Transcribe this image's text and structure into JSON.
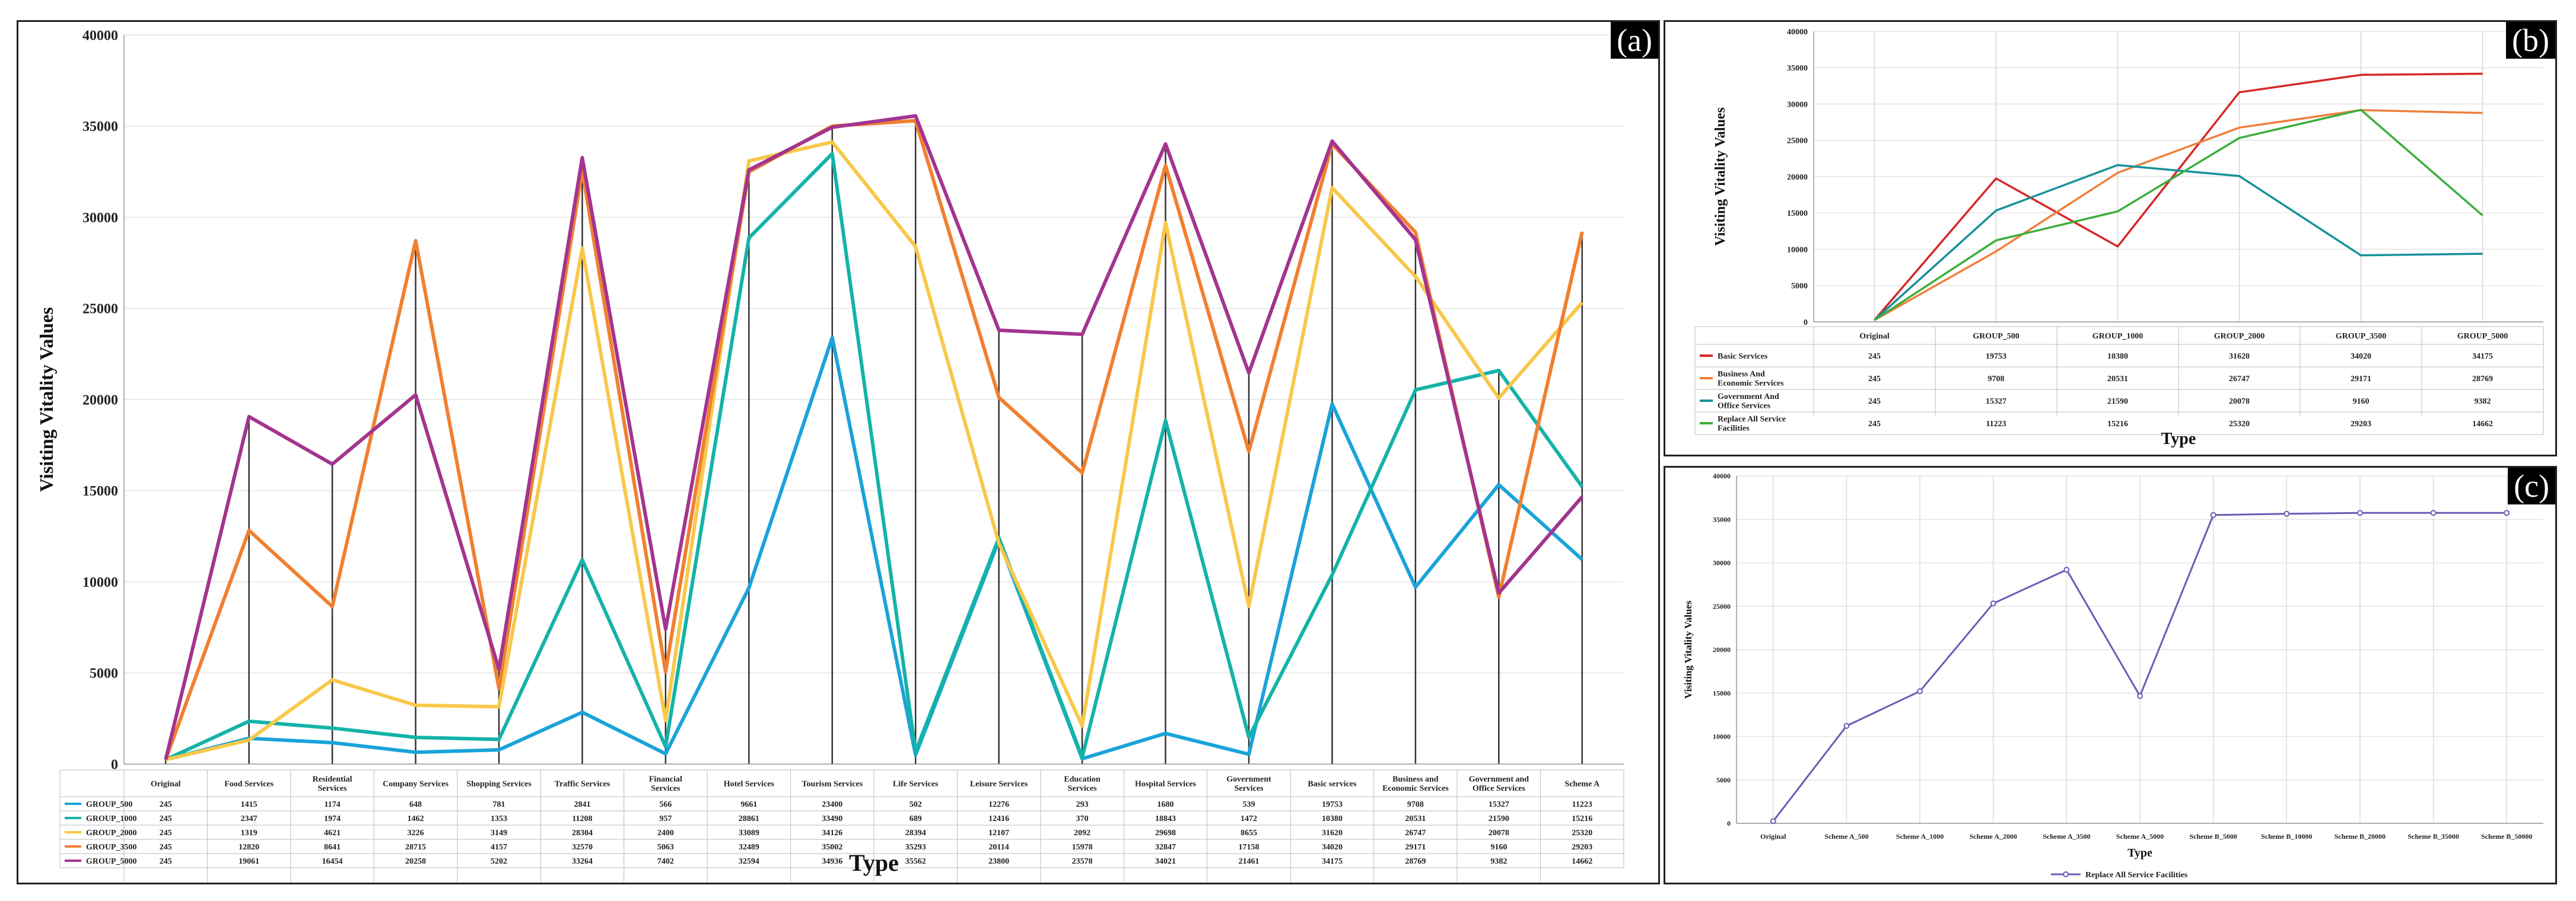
{
  "panels": [
    {
      "label": "(a)"
    },
    {
      "label": "(b)"
    },
    {
      "label": "(c)"
    }
  ],
  "chart_data": [
    {
      "id": "a",
      "type": "line",
      "xlabel": "Type",
      "ylabel": "Visiting Vitality Values",
      "ylim": [
        0,
        40000
      ],
      "yticks": [
        "0",
        "5000",
        "10000",
        "15000",
        "20000",
        "25000",
        "30000",
        "35000",
        "40000"
      ],
      "grid": true,
      "legend": "table-below",
      "categories": [
        "Original",
        "Food Services",
        "Residential Services",
        "Company Services",
        "Shopping Services",
        "Traffic Services",
        "Financial Services",
        "Hotel Services",
        "Tourism Services",
        "Life Services",
        "Leisure Services",
        "Education Services",
        "Hospital Services",
        "Government Services",
        "Basic services",
        "Business and Economic Services",
        "Government and Office Services",
        "Scheme A"
      ],
      "series": [
        {
          "name": "GROUP_500",
          "color": "#1aa3d9",
          "values": [
            245,
            1415,
            1174,
            648,
            781,
            2841,
            566,
            9661,
            23400,
            502,
            12276,
            293,
            1680,
            539,
            19753,
            9708,
            15327,
            11223
          ]
        },
        {
          "name": "GROUP_1000",
          "color": "#14b3a8",
          "values": [
            245,
            2347,
            1974,
            1462,
            1353,
            11208,
            957,
            28861,
            33490,
            689,
            12416,
            370,
            18843,
            1472,
            10380,
            20531,
            21590,
            15216
          ]
        },
        {
          "name": "GROUP_2000",
          "color": "#f8c84a",
          "values": [
            245,
            1319,
            4621,
            3226,
            3149,
            28304,
            2400,
            33089,
            34126,
            28394,
            12107,
            2092,
            29698,
            8655,
            31620,
            26747,
            20078,
            25320
          ]
        },
        {
          "name": "GROUP_3500",
          "color": "#f08030",
          "values": [
            245,
            12820,
            8641,
            28715,
            4157,
            32570,
            5063,
            32489,
            35002,
            35293,
            20114,
            15978,
            32847,
            17158,
            34020,
            29171,
            9160,
            29203
          ]
        },
        {
          "name": "GROUP_5000",
          "color": "#a3348f",
          "values": [
            245,
            19061,
            16454,
            20258,
            5202,
            33264,
            7402,
            32594,
            34936,
            35562,
            23800,
            23578,
            34021,
            21461,
            34175,
            28769,
            9382,
            14662
          ]
        }
      ]
    },
    {
      "id": "b",
      "type": "line",
      "xlabel": "Type",
      "ylabel": "Visiting Vitality Values",
      "ylim": [
        0,
        40000
      ],
      "yticks": [
        "0",
        "5000",
        "10000",
        "15000",
        "20000",
        "25000",
        "30000",
        "35000",
        "40000"
      ],
      "grid": true,
      "legend": "table-below",
      "categories": [
        "Original",
        "GROUP_500",
        "GROUP_1000",
        "GROUP_2000",
        "GROUP_3500",
        "GROUP_5000"
      ],
      "series": [
        {
          "name": "Basic Services",
          "color": "#d62728",
          "values": [
            245,
            19753,
            10380,
            31620,
            34020,
            34175
          ]
        },
        {
          "name": "Business And Economic Services",
          "color": "#f07f3c",
          "values": [
            245,
            9708,
            20531,
            26747,
            29171,
            28769
          ]
        },
        {
          "name": "Government And Office Services",
          "color": "#17909a",
          "values": [
            245,
            15327,
            21590,
            20078,
            9160,
            9382
          ]
        },
        {
          "name": "Replace All Service Facilities",
          "color": "#3cae3c",
          "values": [
            245,
            11223,
            15216,
            25320,
            29203,
            14662
          ]
        }
      ]
    },
    {
      "id": "c",
      "type": "line",
      "xlabel": "Type",
      "ylabel": "Visiting Vitality Values",
      "ylim": [
        0,
        40000
      ],
      "yticks": [
        "0",
        "5000",
        "10000",
        "15000",
        "20000",
        "25000",
        "30000",
        "35000",
        "40000"
      ],
      "grid": true,
      "legend": "bottom-center",
      "categories": [
        "Original",
        "Scheme A_500",
        "Scheme A_1000",
        "Scheme A_2000",
        "Scheme A_3500",
        "Scheme A_5000",
        "Scheme B_5000",
        "Scheme B_10000",
        "Scheme B_20000",
        "Scheme B_35000",
        "Scheme B_50000"
      ],
      "series": [
        {
          "name": "Replace All Service Facilities",
          "color": "#6a5cb8",
          "values": [
            245,
            11223,
            15216,
            25320,
            29203,
            14662,
            35500,
            35650,
            35750,
            35750,
            35750
          ]
        }
      ]
    }
  ]
}
